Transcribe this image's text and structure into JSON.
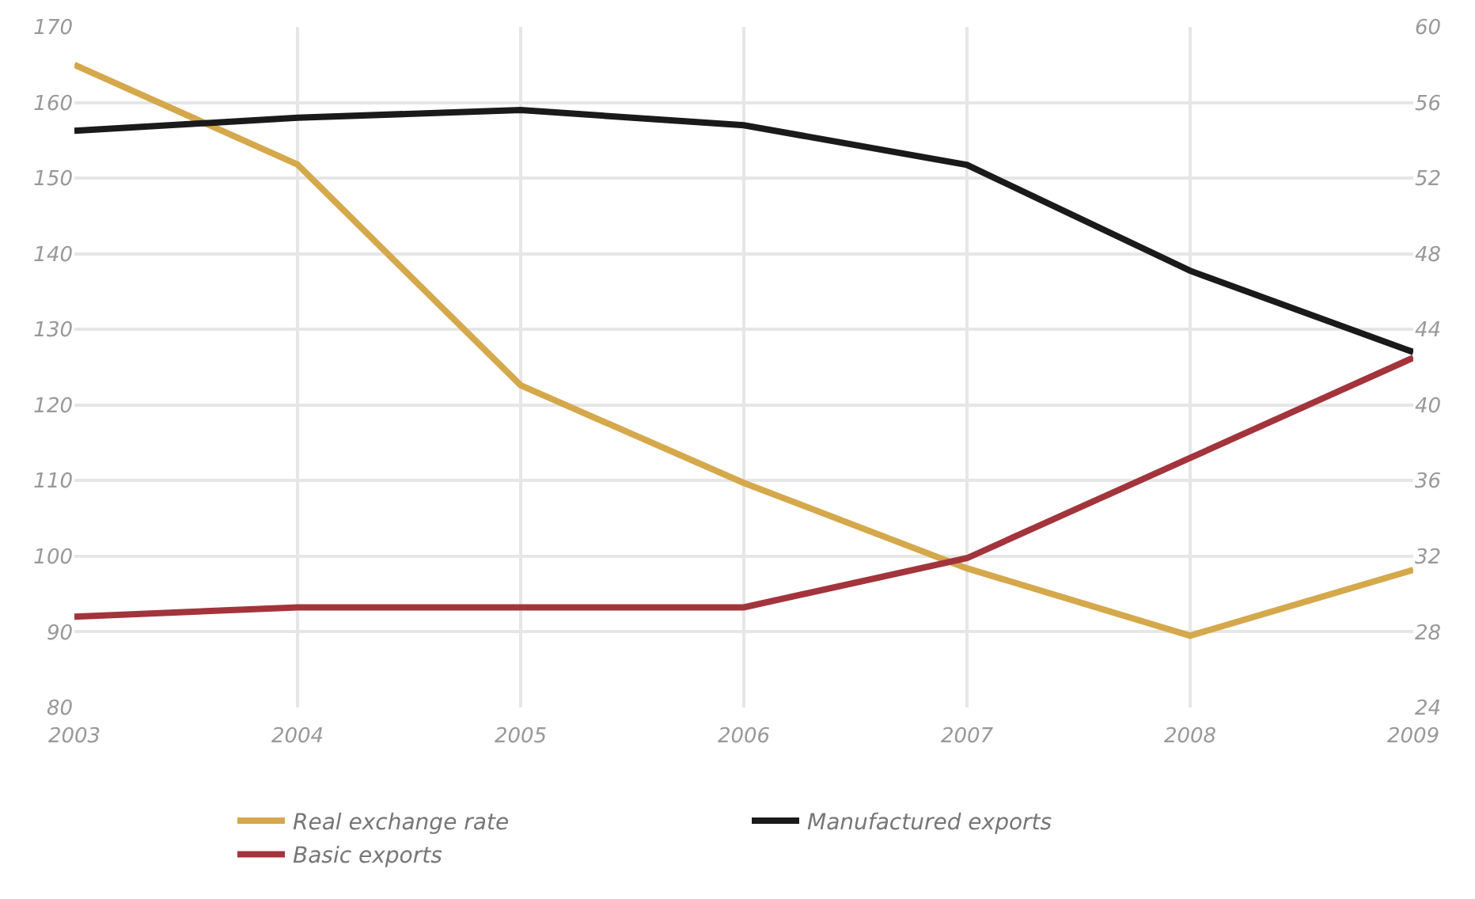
{
  "chart_data": {
    "type": "line",
    "x": [
      2003,
      2004,
      2005,
      2006,
      2007,
      2008,
      2009
    ],
    "series": [
      {
        "name": "Real exchange rate",
        "color": "#d4a84b",
        "values": [
          165,
          151.8,
          122.6,
          109.7,
          98.4,
          89.5,
          98.2
        ]
      },
      {
        "name": "Manufactured exports",
        "color": "#1a1a1a",
        "axis": "y2",
        "values": [
          54.5,
          55.2,
          55.6,
          54.8,
          52.7,
          47.1,
          42.8
        ]
      },
      {
        "name": "Basic exports",
        "color": "#a3343c",
        "axis": "y2",
        "values": [
          28.8,
          29.3,
          29.3,
          29.3,
          31.9,
          37.2,
          42.5
        ]
      }
    ],
    "xlim": [
      2003,
      2009
    ],
    "xticks": [
      2003,
      2004,
      2005,
      2006,
      2007,
      2008,
      2009
    ],
    "ylim": [
      80,
      170
    ],
    "yticks": [
      80,
      90,
      100,
      110,
      120,
      130,
      140,
      150,
      160,
      170
    ],
    "y2lim": [
      24,
      60
    ],
    "y2ticks": [
      24,
      28,
      32,
      36,
      40,
      44,
      48,
      52,
      56,
      60
    ],
    "grid": true,
    "legend": "bottom",
    "marker": "none",
    "line_style": "solid"
  }
}
